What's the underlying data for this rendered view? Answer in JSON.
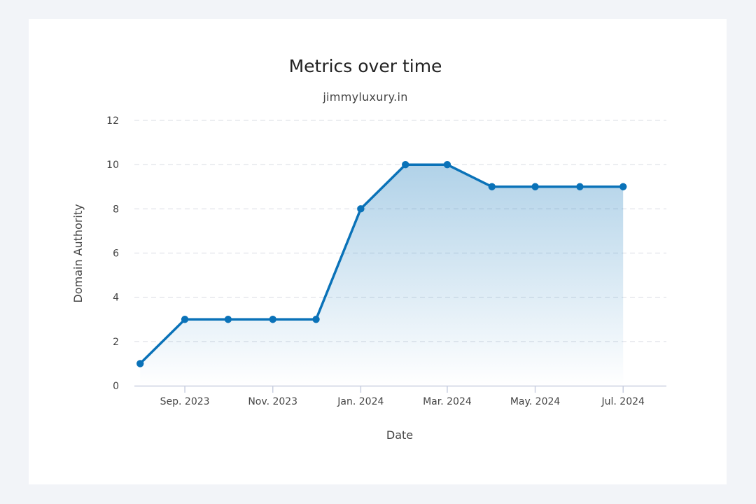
{
  "chart_data": {
    "type": "area",
    "title": "Metrics over time",
    "subtitle": "jimmyluxury.in",
    "xlabel": "Date",
    "ylabel": "Domain Authority",
    "ylim": [
      0,
      12
    ],
    "yticks": [
      0,
      2,
      4,
      6,
      8,
      10,
      12
    ],
    "xlim": [
      "2023-07-28",
      "2024-07-31"
    ],
    "xticks": [
      {
        "date": "2023-09-01",
        "label": "Sep. 2023"
      },
      {
        "date": "2023-11-01",
        "label": "Nov. 2023"
      },
      {
        "date": "2024-01-01",
        "label": "Jan. 2024"
      },
      {
        "date": "2024-03-01",
        "label": "Mar. 2024"
      },
      {
        "date": "2024-05-01",
        "label": "May. 2024"
      },
      {
        "date": "2024-07-01",
        "label": "Jul. 2024"
      }
    ],
    "grid": true,
    "series": [
      {
        "points": [
          {
            "x": "2023-08-01",
            "y": 1
          },
          {
            "x": "2023-09-01",
            "y": 3
          },
          {
            "x": "2023-10-01",
            "y": 3
          },
          {
            "x": "2023-11-01",
            "y": 3
          },
          {
            "x": "2023-12-01",
            "y": 3
          },
          {
            "x": "2024-01-01",
            "y": 8
          },
          {
            "x": "2024-02-01",
            "y": 10
          },
          {
            "x": "2024-03-01",
            "y": 10
          },
          {
            "x": "2024-04-01",
            "y": 9
          },
          {
            "x": "2024-05-01",
            "y": 9
          },
          {
            "x": "2024-06-01",
            "y": 9
          },
          {
            "x": "2024-07-01",
            "y": 9
          }
        ],
        "color": "#0a72b8"
      }
    ]
  }
}
